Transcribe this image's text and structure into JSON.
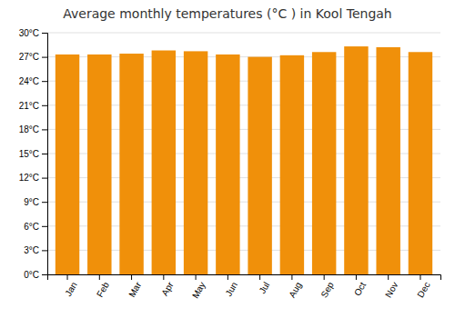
{
  "chart_data": {
    "type": "bar",
    "title": "Average monthly temperatures (°C ) in Kool Tengah",
    "categories": [
      "Jan",
      "Feb",
      "Mar",
      "Apr",
      "May",
      "Jun",
      "Jul",
      "Aug",
      "Sep",
      "Oct",
      "Nov",
      "Dec"
    ],
    "values": [
      27.3,
      27.3,
      27.4,
      27.8,
      27.7,
      27.3,
      27.0,
      27.2,
      27.6,
      28.3,
      28.2,
      27.6
    ],
    "color": "#F0900A",
    "ylim": [
      0,
      30
    ],
    "yticks": [
      {
        "value": 0,
        "label": "0°C"
      },
      {
        "value": 3,
        "label": "3°C"
      },
      {
        "value": 6,
        "label": "6°C"
      },
      {
        "value": 9,
        "label": "9°C"
      },
      {
        "value": 12,
        "label": "12°C"
      },
      {
        "value": 15,
        "label": "15°C"
      },
      {
        "value": 18,
        "label": "18°C"
      },
      {
        "value": 21,
        "label": "21°C"
      },
      {
        "value": 24,
        "label": "24°C"
      },
      {
        "value": 27,
        "label": "27°C"
      },
      {
        "value": 30,
        "label": "30°C"
      }
    ],
    "grid": true
  }
}
